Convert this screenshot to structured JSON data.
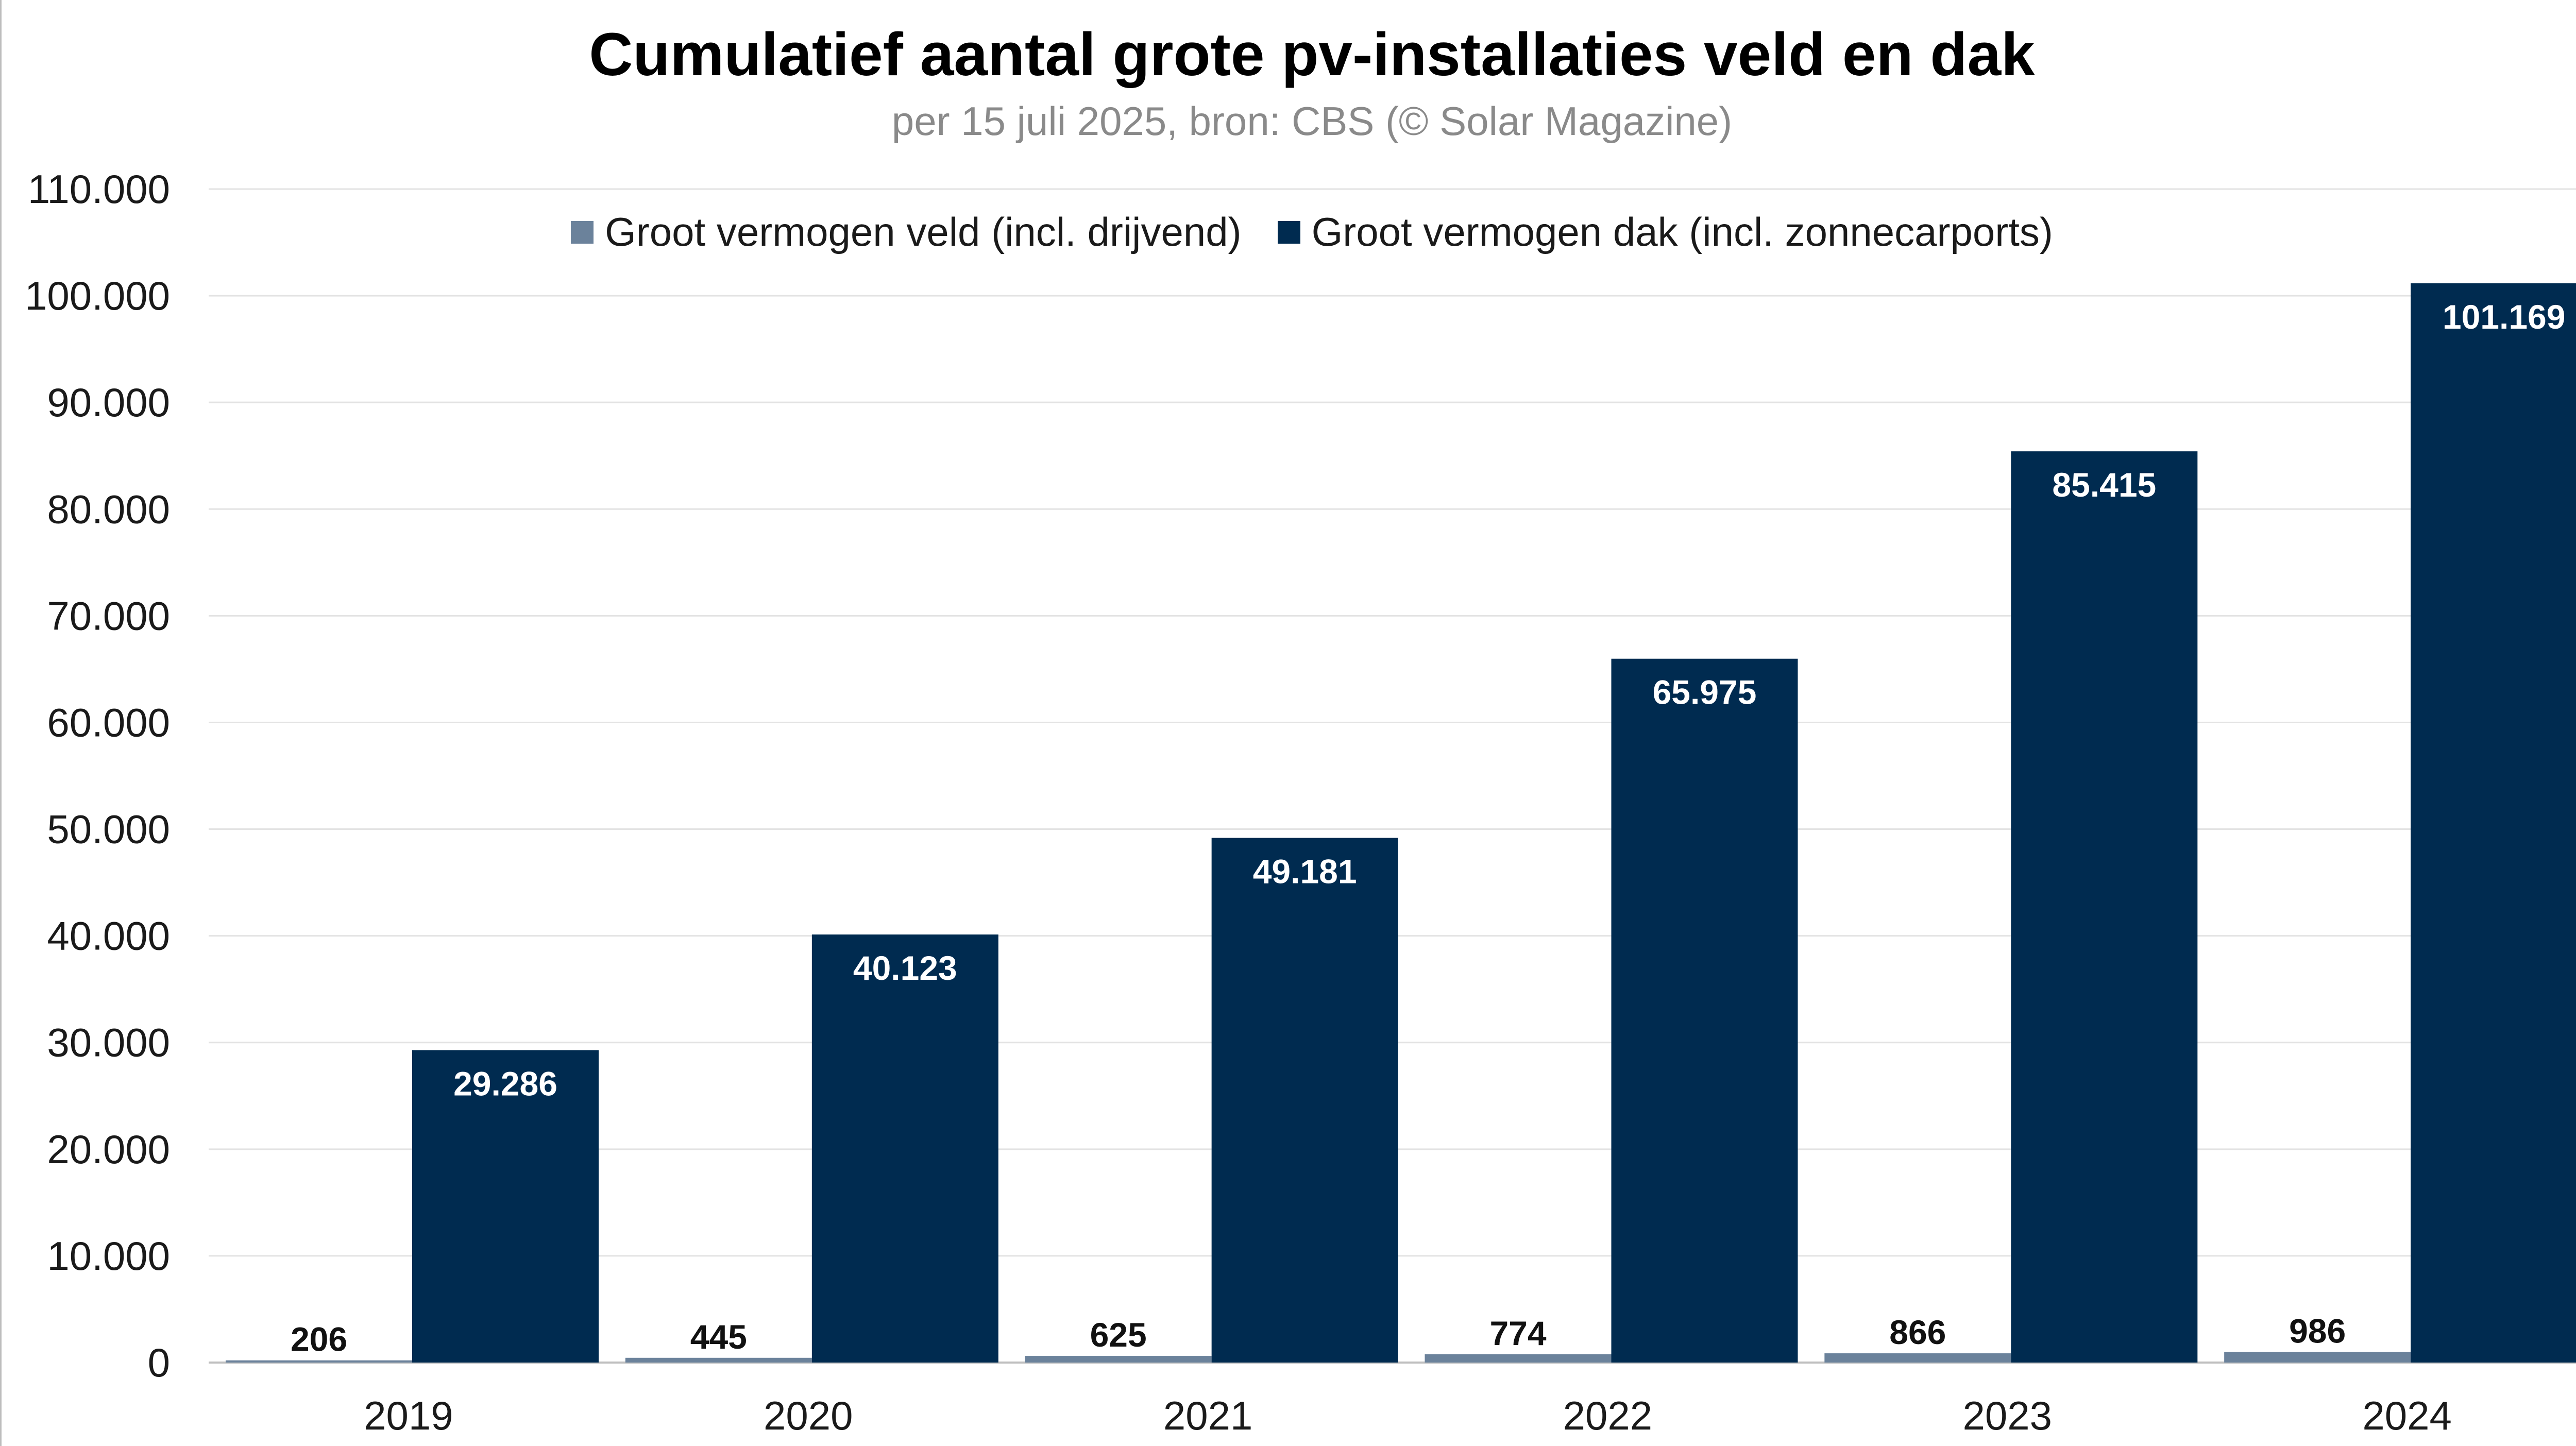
{
  "chart_data": {
    "type": "bar",
    "title": "Cumulatief aantal grote pv-installaties veld en dak",
    "subtitle": "per 15 juli 2025, bron: CBS (© Solar Magazine)",
    "xlabel": "",
    "ylabel": "",
    "categories": [
      "2019",
      "2020",
      "2021",
      "2022",
      "2023",
      "2024"
    ],
    "series": [
      {
        "name": "Groot vermogen veld (incl. drijvend)",
        "color": "#6b829b",
        "values": [
          206,
          445,
          625,
          774,
          866,
          986
        ],
        "labels": [
          "206",
          "445",
          "625",
          "774",
          "866",
          "986"
        ]
      },
      {
        "name": "Groot vermogen dak (incl. zonnecarports)",
        "color": "#002b50",
        "values": [
          29286,
          40123,
          49181,
          65975,
          85415,
          101169
        ],
        "labels": [
          "29.286",
          "40.123",
          "49.181",
          "65.975",
          "85.415",
          "101.169"
        ]
      }
    ],
    "ylim": [
      0,
      110000
    ],
    "yticks": [
      0,
      10000,
      20000,
      30000,
      40000,
      50000,
      60000,
      70000,
      80000,
      90000,
      100000,
      110000
    ],
    "ytick_labels": [
      "0",
      "10.000",
      "20.000",
      "30.000",
      "40.000",
      "50.000",
      "60.000",
      "70.000",
      "80.000",
      "90.000",
      "100.000",
      "110.000"
    ],
    "grid": true,
    "legend_position": "top-center"
  }
}
